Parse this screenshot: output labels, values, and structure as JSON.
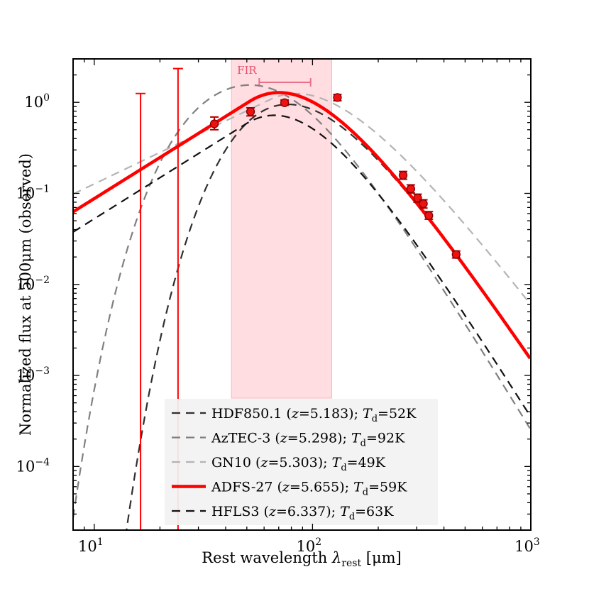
{
  "chart_data": {
    "type": "line",
    "xscale": "log",
    "yscale": "log",
    "xlim": [
      8,
      1000
    ],
    "ylim": [
      2e-05,
      3
    ],
    "xlabel_text": "Rest wavelength ",
    "xlabel_symbol": "λ",
    "xlabel_sub": "rest",
    "xlabel_unit": " [μm]",
    "ylabel": "Normalized flux at 500μm (observed)",
    "x_ticks": [
      {
        "value": 10,
        "base": "10",
        "exp": "1"
      },
      {
        "value": 100,
        "base": "10",
        "exp": "2"
      },
      {
        "value": 1000,
        "base": "10",
        "exp": "3"
      }
    ],
    "y_ticks": [
      {
        "value": 1,
        "base": "10",
        "exp": "0"
      },
      {
        "value": 0.1,
        "base": "10",
        "exp": "−1"
      },
      {
        "value": 0.01,
        "base": "10",
        "exp": "−2"
      },
      {
        "value": 0.001,
        "base": "10",
        "exp": "−3"
      },
      {
        "value": 0.0001,
        "base": "10",
        "exp": "−4"
      }
    ],
    "fir_band": {
      "label": "FIR",
      "range_um": [
        42.5,
        122.5
      ],
      "color": "#ffd9dd",
      "marker_range_um": [
        57,
        98
      ]
    },
    "series": [
      {
        "name": "HDF850.1",
        "z": "5.183",
        "td": "52K",
        "color": "#303030",
        "style": "dashed",
        "T": 52,
        "beta": 1.6,
        "lambda0": 100,
        "norm": 0.95,
        "legend_name": "HDF850.1 (",
        "legend_z": "z",
        "legend_zval": "=5.183); ",
        "legend_t": "T",
        "legend_tsub": "d",
        "legend_tval": "=52K"
      },
      {
        "name": "AzTEC-3",
        "z": "5.298",
        "td": "92K",
        "color": "#808080",
        "style": "dashed",
        "T": 92,
        "beta": 2.0,
        "lambda0": 100,
        "norm": 1.55,
        "legend_name": "AzTEC-3 (",
        "legend_z": "z",
        "legend_zval": "=5.298); ",
        "legend_t": "T",
        "legend_tsub": "d",
        "legend_tval": "=92K"
      },
      {
        "name": "GN10",
        "z": "5.303",
        "td": "49K",
        "color": "#b4b4b4",
        "style": "dashed",
        "T": 49,
        "beta": 1.2,
        "lambda0": 100,
        "norm": 1.25,
        "legend_name": "GN10 (",
        "legend_z": "z",
        "legend_zval": "=5.303); ",
        "legend_t": "T",
        "legend_tsub": "d",
        "legend_tval": "=49K"
      },
      {
        "name": "ADFS-27",
        "z": "5.655",
        "td": "59K",
        "color": "#ff0000",
        "style": "solid",
        "T": 59,
        "beta": 1.6,
        "lambda0": 100,
        "norm": 1.28,
        "legend_name": "ADFS-27 (",
        "legend_z": "z",
        "legend_zval": "=5.655); ",
        "legend_t": "T",
        "legend_tsub": "d",
        "legend_tval": "=59K"
      },
      {
        "name": "HFLS3",
        "z": "6.337",
        "td": "63K",
        "color": "#111111",
        "style": "dashed",
        "T": 63,
        "beta": 1.9,
        "lambda0": 100,
        "norm": 0.72,
        "offset_um": 18,
        "legend_name": "HFLS3 (",
        "legend_z": "z",
        "legend_zval": "=6.337); ",
        "legend_t": "T",
        "legend_tsub": "d",
        "legend_tval": "=63K"
      }
    ],
    "points": [
      {
        "x": 35.5,
        "y": 0.58,
        "ylo": 0.5,
        "yhi": 0.69
      },
      {
        "x": 52,
        "y": 0.79,
        "ylo": 0.71,
        "yhi": 0.87
      },
      {
        "x": 74.5,
        "y": 0.99,
        "ylo": 0.93,
        "yhi": 1.06
      },
      {
        "x": 130,
        "y": 1.13,
        "ylo": 1.04,
        "yhi": 1.22
      },
      {
        "x": 260,
        "y": 0.158,
        "ylo": 0.143,
        "yhi": 0.174
      },
      {
        "x": 282,
        "y": 0.112,
        "ylo": 0.101,
        "yhi": 0.124
      },
      {
        "x": 303,
        "y": 0.089,
        "ylo": 0.08,
        "yhi": 0.098
      },
      {
        "x": 322,
        "y": 0.077,
        "ylo": 0.069,
        "yhi": 0.085
      },
      {
        "x": 341,
        "y": 0.057,
        "ylo": 0.052,
        "yhi": 0.063
      },
      {
        "x": 455,
        "y": 0.0213,
        "ylo": 0.0195,
        "yhi": 0.0233
      }
    ],
    "upper_limits": [
      {
        "x": 16.3,
        "yhi": 1.25
      },
      {
        "x": 24.2,
        "yhi": 2.35
      }
    ]
  }
}
